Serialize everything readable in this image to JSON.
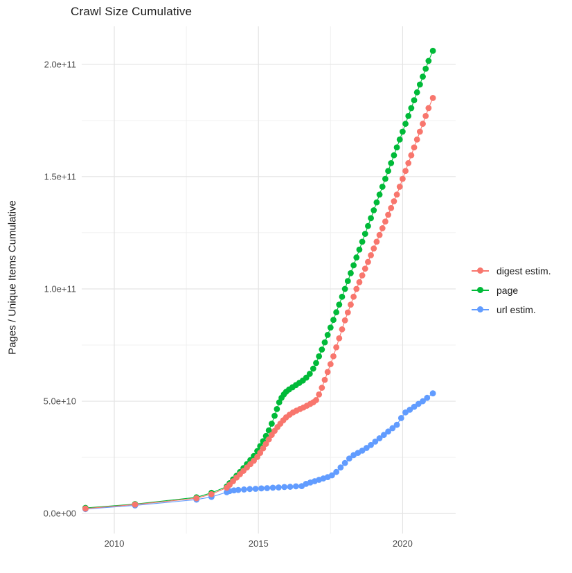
{
  "title": "Crawl Size Cumulative",
  "y_axis": {
    "label": "Pages / Unique Items Cumulative",
    "tick_labels": [
      "0.0e+00",
      "5.0e+10",
      "1.0e+11",
      "1.5e+11",
      "2.0e+11"
    ]
  },
  "x_axis": {
    "tick_labels": [
      "2010",
      "2015",
      "2020"
    ]
  },
  "legend": {
    "items": [
      {
        "label": "digest estim.",
        "color": "#F8766D",
        "series": "digest"
      },
      {
        "label": "page",
        "color": "#00BA38",
        "series": "page"
      },
      {
        "label": "url estim.",
        "color": "#619CFF",
        "series": "url"
      }
    ]
  },
  "chart_data": {
    "type": "scatter",
    "title": "Crawl Size Cumulative",
    "xlabel": "",
    "ylabel": "Pages / Unique Items Cumulative",
    "x_domain": [
      2008.87,
      2021.84
    ],
    "y_domain": [
      -8900000000.0,
      216900000000.0
    ],
    "x_ticks": [
      {
        "v": 2010,
        "label": "2010"
      },
      {
        "v": 2015,
        "label": "2015"
      },
      {
        "v": 2020,
        "label": "2020"
      }
    ],
    "x_minor_ticks": [
      2012.5,
      2017.5
    ],
    "y_ticks": [
      {
        "v": 0.0,
        "label": "0.0e+00"
      },
      {
        "v": 50000000000.0,
        "label": "5.0e+10"
      },
      {
        "v": 100000000000.0,
        "label": "1.0e+11"
      },
      {
        "v": 150000000000.0,
        "label": "1.5e+11"
      },
      {
        "v": 200000000000.0,
        "label": "2.0e+11"
      }
    ],
    "y_minor_ticks": [
      25000000000.0,
      75000000000.0,
      125000000000.0,
      175000000000.0
    ],
    "grid": true,
    "legend_position": "right",
    "series": [
      {
        "name": "digest estim.",
        "color": "#F8766D",
        "points": [
          [
            2009.0,
            2200000000.0
          ],
          [
            2010.72,
            4000000000.0
          ],
          [
            2012.85,
            6800000000.0
          ],
          [
            2013.37,
            8600000000.0
          ],
          [
            2013.9,
            11500000000.0
          ],
          [
            2014.0,
            12800000000.0
          ],
          [
            2014.12,
            14400000000.0
          ],
          [
            2014.24,
            16000000000.0
          ],
          [
            2014.36,
            17500000000.0
          ],
          [
            2014.48,
            19000000000.0
          ],
          [
            2014.6,
            20500000000.0
          ],
          [
            2014.72,
            22000000000.0
          ],
          [
            2014.84,
            23500000000.0
          ],
          [
            2014.96,
            25200000000.0
          ],
          [
            2015.06,
            27000000000.0
          ],
          [
            2015.16,
            29000000000.0
          ],
          [
            2015.26,
            31000000000.0
          ],
          [
            2015.36,
            33000000000.0
          ],
          [
            2015.46,
            35000000000.0
          ],
          [
            2015.56,
            36800000000.0
          ],
          [
            2015.66,
            38500000000.0
          ],
          [
            2015.76,
            40000000000.0
          ],
          [
            2015.86,
            41500000000.0
          ],
          [
            2015.96,
            42800000000.0
          ],
          [
            2016.08,
            44000000000.0
          ],
          [
            2016.2,
            45000000000.0
          ],
          [
            2016.32,
            45800000000.0
          ],
          [
            2016.44,
            46500000000.0
          ],
          [
            2016.56,
            47200000000.0
          ],
          [
            2016.68,
            48000000000.0
          ],
          [
            2016.8,
            48800000000.0
          ],
          [
            2016.9,
            49500000000.0
          ],
          [
            2017.0,
            50500000000.0
          ],
          [
            2017.1,
            53000000000.0
          ],
          [
            2017.2,
            56000000000.0
          ],
          [
            2017.3,
            59500000000.0
          ],
          [
            2017.4,
            63000000000.0
          ],
          [
            2017.5,
            66500000000.0
          ],
          [
            2017.6,
            70000000000.0
          ],
          [
            2017.7,
            74000000000.0
          ],
          [
            2017.8,
            78000000000.0
          ],
          [
            2017.9,
            82000000000.0
          ],
          [
            2018.0,
            86000000000.0
          ],
          [
            2018.1,
            89500000000.0
          ],
          [
            2018.2,
            93000000000.0
          ],
          [
            2018.3,
            96500000000.0
          ],
          [
            2018.4,
            100000000000.0
          ],
          [
            2018.5,
            103000000000.0
          ],
          [
            2018.6,
            106000000000.0
          ],
          [
            2018.7,
            109000000000.0
          ],
          [
            2018.8,
            112000000000.0
          ],
          [
            2018.9,
            115000000000.0
          ],
          [
            2019.0,
            118000000000.0
          ],
          [
            2019.1,
            121000000000.0
          ],
          [
            2019.2,
            124000000000.0
          ],
          [
            2019.3,
            127000000000.0
          ],
          [
            2019.4,
            130000000000.0
          ],
          [
            2019.5,
            133000000000.0
          ],
          [
            2019.6,
            136000000000.0
          ],
          [
            2019.7,
            139000000000.0
          ],
          [
            2019.8,
            142000000000.0
          ],
          [
            2019.9,
            145500000000.0
          ],
          [
            2020.0,
            149000000000.0
          ],
          [
            2020.1,
            152500000000.0
          ],
          [
            2020.2,
            156000000000.0
          ],
          [
            2020.3,
            159500000000.0
          ],
          [
            2020.4,
            163000000000.0
          ],
          [
            2020.5,
            166500000000.0
          ],
          [
            2020.6,
            170000000000.0
          ],
          [
            2020.7,
            173500000000.0
          ],
          [
            2020.8,
            177000000000.0
          ],
          [
            2020.9,
            180500000000.0
          ],
          [
            2021.05,
            185000000000.0
          ]
        ]
      },
      {
        "name": "page",
        "color": "#00BA38",
        "points": [
          [
            2009.0,
            2500000000.0
          ],
          [
            2010.72,
            4200000000.0
          ],
          [
            2012.85,
            7200000000.0
          ],
          [
            2013.37,
            9200000000.0
          ],
          [
            2013.9,
            12000000000.0
          ],
          [
            2014.0,
            13500000000.0
          ],
          [
            2014.12,
            15200000000.0
          ],
          [
            2014.24,
            16800000000.0
          ],
          [
            2014.36,
            18500000000.0
          ],
          [
            2014.48,
            20200000000.0
          ],
          [
            2014.6,
            22000000000.0
          ],
          [
            2014.72,
            23800000000.0
          ],
          [
            2014.84,
            25600000000.0
          ],
          [
            2014.96,
            27800000000.0
          ],
          [
            2015.06,
            30000000000.0
          ],
          [
            2015.16,
            32200000000.0
          ],
          [
            2015.26,
            34500000000.0
          ],
          [
            2015.36,
            37000000000.0
          ],
          [
            2015.46,
            40000000000.0
          ],
          [
            2015.56,
            43500000000.0
          ],
          [
            2015.64,
            46500000000.0
          ],
          [
            2015.72,
            49500000000.0
          ],
          [
            2015.8,
            51500000000.0
          ],
          [
            2015.88,
            53000000000.0
          ],
          [
            2015.96,
            54200000000.0
          ],
          [
            2016.06,
            55200000000.0
          ],
          [
            2016.18,
            56200000000.0
          ],
          [
            2016.3,
            57200000000.0
          ],
          [
            2016.42,
            58200000000.0
          ],
          [
            2016.54,
            59200000000.0
          ],
          [
            2016.66,
            60500000000.0
          ],
          [
            2016.78,
            62200000000.0
          ],
          [
            2016.9,
            64500000000.0
          ],
          [
            2017.0,
            67000000000.0
          ],
          [
            2017.1,
            70000000000.0
          ],
          [
            2017.2,
            73000000000.0
          ],
          [
            2017.3,
            76200000000.0
          ],
          [
            2017.4,
            79500000000.0
          ],
          [
            2017.5,
            82800000000.0
          ],
          [
            2017.6,
            86200000000.0
          ],
          [
            2017.7,
            89600000000.0
          ],
          [
            2017.8,
            93000000000.0
          ],
          [
            2017.9,
            96500000000.0
          ],
          [
            2018.0,
            100000000000.0
          ],
          [
            2018.1,
            103500000000.0
          ],
          [
            2018.2,
            107000000000.0
          ],
          [
            2018.3,
            110500000000.0
          ],
          [
            2018.4,
            114000000000.0
          ],
          [
            2018.5,
            117500000000.0
          ],
          [
            2018.6,
            121000000000.0
          ],
          [
            2018.7,
            124500000000.0
          ],
          [
            2018.8,
            128000000000.0
          ],
          [
            2018.9,
            131500000000.0
          ],
          [
            2019.0,
            135000000000.0
          ],
          [
            2019.1,
            138500000000.0
          ],
          [
            2019.2,
            142000000000.0
          ],
          [
            2019.3,
            145500000000.0
          ],
          [
            2019.4,
            149000000000.0
          ],
          [
            2019.5,
            152500000000.0
          ],
          [
            2019.6,
            156000000000.0
          ],
          [
            2019.7,
            159500000000.0
          ],
          [
            2019.8,
            163000000000.0
          ],
          [
            2019.9,
            166500000000.0
          ],
          [
            2020.0,
            170000000000.0
          ],
          [
            2020.1,
            173500000000.0
          ],
          [
            2020.2,
            177000000000.0
          ],
          [
            2020.3,
            180500000000.0
          ],
          [
            2020.4,
            184000000000.0
          ],
          [
            2020.5,
            187500000000.0
          ],
          [
            2020.6,
            191000000000.0
          ],
          [
            2020.7,
            194500000000.0
          ],
          [
            2020.8,
            198000000000.0
          ],
          [
            2020.9,
            201500000000.0
          ],
          [
            2021.05,
            206000000000.0
          ]
        ]
      },
      {
        "name": "url estim.",
        "color": "#619CFF",
        "points": [
          [
            2009.0,
            2000000000.0
          ],
          [
            2010.72,
            3600000000.0
          ],
          [
            2012.85,
            6200000000.0
          ],
          [
            2013.37,
            7400000000.0
          ],
          [
            2013.9,
            9500000000.0
          ],
          [
            2014.0,
            10000000000.0
          ],
          [
            2014.15,
            10300000000.0
          ],
          [
            2014.3,
            10500000000.0
          ],
          [
            2014.5,
            10700000000.0
          ],
          [
            2014.7,
            10900000000.0
          ],
          [
            2014.9,
            11000000000.0
          ],
          [
            2015.1,
            11200000000.0
          ],
          [
            2015.3,
            11300000000.0
          ],
          [
            2015.5,
            11500000000.0
          ],
          [
            2015.7,
            11600000000.0
          ],
          [
            2015.9,
            11800000000.0
          ],
          [
            2016.1,
            11900000000.0
          ],
          [
            2016.3,
            12100000000.0
          ],
          [
            2016.5,
            12200000000.0
          ],
          [
            2016.65,
            13200000000.0
          ],
          [
            2016.8,
            13800000000.0
          ],
          [
            2016.95,
            14400000000.0
          ],
          [
            2017.1,
            15000000000.0
          ],
          [
            2017.25,
            15600000000.0
          ],
          [
            2017.4,
            16200000000.0
          ],
          [
            2017.55,
            17000000000.0
          ],
          [
            2017.7,
            18500000000.0
          ],
          [
            2017.85,
            20500000000.0
          ],
          [
            2018.0,
            22500000000.0
          ],
          [
            2018.15,
            24500000000.0
          ],
          [
            2018.3,
            26000000000.0
          ],
          [
            2018.45,
            27000000000.0
          ],
          [
            2018.6,
            28000000000.0
          ],
          [
            2018.75,
            29200000000.0
          ],
          [
            2018.9,
            30500000000.0
          ],
          [
            2019.05,
            32000000000.0
          ],
          [
            2019.2,
            33500000000.0
          ],
          [
            2019.35,
            35000000000.0
          ],
          [
            2019.5,
            36500000000.0
          ],
          [
            2019.65,
            38000000000.0
          ],
          [
            2019.8,
            39500000000.0
          ],
          [
            2019.95,
            42500000000.0
          ],
          [
            2020.1,
            45000000000.0
          ],
          [
            2020.25,
            46200000000.0
          ],
          [
            2020.4,
            47500000000.0
          ],
          [
            2020.55,
            48800000000.0
          ],
          [
            2020.7,
            50000000000.0
          ],
          [
            2020.85,
            51500000000.0
          ],
          [
            2021.05,
            53500000000.0
          ]
        ]
      }
    ]
  }
}
